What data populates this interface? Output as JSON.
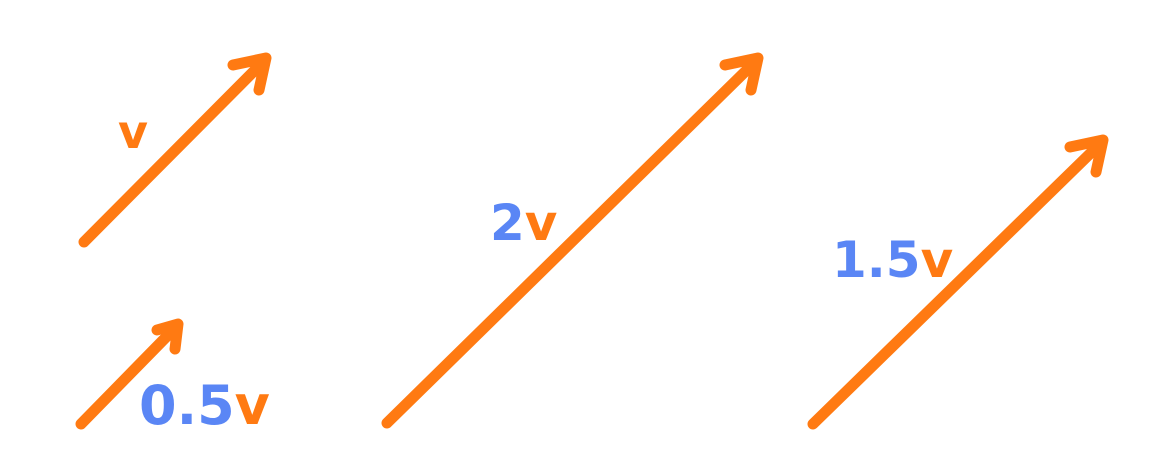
{
  "colors": {
    "vector": "#ff7a12",
    "scalar": "#5a86f5"
  },
  "vectors": [
    {
      "id": "v",
      "scalar": "",
      "symbol": "v",
      "scale": 1
    },
    {
      "id": "half-v",
      "scalar": "0.5",
      "symbol": "v",
      "scale": 0.5
    },
    {
      "id": "two-v",
      "scalar": "2",
      "symbol": "v",
      "scale": 2
    },
    {
      "id": "one-and-half-v",
      "scalar": "1.5",
      "symbol": "v",
      "scale": 1.5
    }
  ]
}
